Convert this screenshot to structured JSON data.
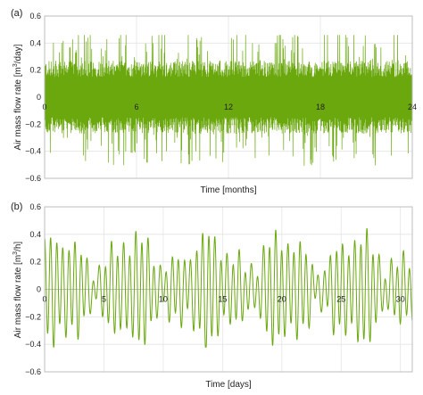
{
  "colors": {
    "series": "#6aa80e",
    "grid": "#e4e4e4",
    "frame": "#bdbdbd"
  },
  "chart_data": [
    {
      "type": "line",
      "panel_label": "(a)",
      "xlabel": "Time [months]",
      "ylabel_prefix": "Air mass flow rate [m",
      "ylabel_sup": "3",
      "ylabel_suffix": "/day]",
      "xlim": [
        0,
        24
      ],
      "ylim": [
        -0.6,
        0.6
      ],
      "xticks": [
        0,
        6,
        12,
        18,
        24
      ],
      "xtick_labels": [
        "0",
        "6",
        "12",
        "18",
        "24"
      ],
      "yticks": [
        -0.6,
        -0.4,
        -0.2,
        0,
        0.2,
        0.4,
        0.6
      ],
      "ytick_labels": [
        "−0.6",
        "−0.4",
        "−0.2",
        "0",
        "0.2",
        "0.4",
        "0.6"
      ],
      "grid": true,
      "series": [
        {
          "x_range": [
            0,
            24
          ],
          "core_amplitude": 0.27,
          "peak_max": 0.46,
          "peak_min": -0.51
        }
      ]
    },
    {
      "type": "line",
      "panel_label": "(b)",
      "xlabel": "Time [days]",
      "ylabel_prefix": "Air mass flow rate [m",
      "ylabel_sup": "3",
      "ylabel_suffix": "/h]",
      "xlim": [
        0,
        31
      ],
      "ylim": [
        -0.6,
        0.6
      ],
      "xticks": [
        0,
        5,
        10,
        15,
        20,
        25,
        30
      ],
      "xtick_labels": [
        "0",
        "5",
        "10",
        "15",
        "20",
        "25",
        "30"
      ],
      "yticks": [
        -0.6,
        -0.4,
        -0.2,
        0,
        0.2,
        0.4,
        0.6
      ],
      "ytick_labels": [
        "−0.6",
        "−0.4",
        "−0.2",
        "0",
        "0.2",
        "0.4",
        "0.6"
      ],
      "grid": true,
      "series": [
        {
          "x_range": [
            0,
            31
          ],
          "cycles_per_day": 1.95,
          "peak_max": 0.49,
          "peak_min": -0.42
        }
      ]
    }
  ]
}
